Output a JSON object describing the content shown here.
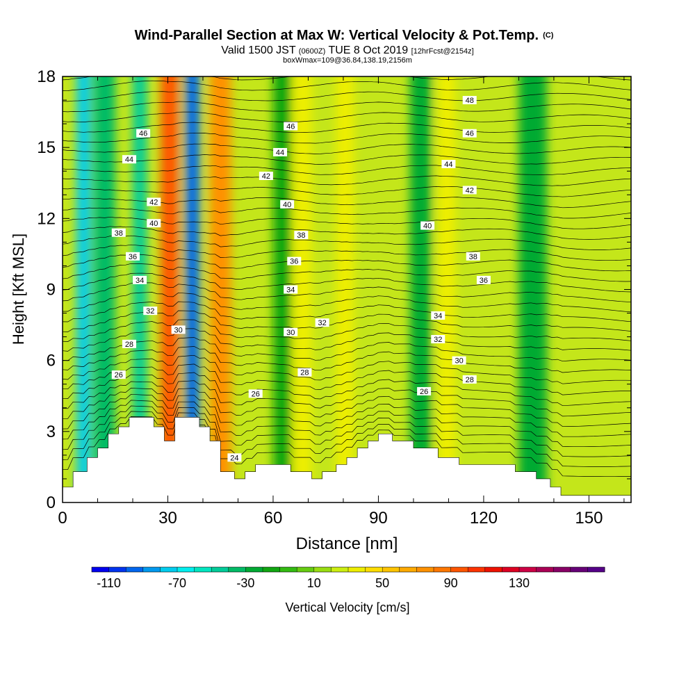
{
  "title": {
    "main": "Wind-Parallel Section at Max W: Vertical Velocity & Pot.Temp.",
    "main_tag": "(C)",
    "valid_prefix": "Valid 1500 JST",
    "valid_utc": "(0600Z)",
    "valid_date": "TUE 8 Oct 2019",
    "valid_fcst": "[12hrFcst@2154z]",
    "subtitle": "boxWmax=109@36.84,138.19,2156m"
  },
  "chart_data": {
    "type": "heatmap",
    "xlabel": "Distance [nm]",
    "ylabel": "Height [Kft MSL]",
    "xlim": [
      0,
      162
    ],
    "ylim": [
      0,
      18
    ],
    "xticks": [
      0,
      30,
      60,
      90,
      120,
      150
    ],
    "yticks": [
      0,
      3,
      6,
      9,
      12,
      15,
      18
    ],
    "terrain_kft": [
      [
        0,
        0.65
      ],
      [
        3,
        0.65
      ],
      [
        3,
        1.3
      ],
      [
        7,
        1.3
      ],
      [
        7,
        1.9
      ],
      [
        10,
        1.9
      ],
      [
        10,
        2.3
      ],
      [
        13,
        2.3
      ],
      [
        13,
        2.9
      ],
      [
        16,
        2.9
      ],
      [
        16,
        3.2
      ],
      [
        19,
        3.2
      ],
      [
        19,
        3.6
      ],
      [
        26,
        3.6
      ],
      [
        26,
        3.2
      ],
      [
        29,
        3.2
      ],
      [
        29,
        2.6
      ],
      [
        32,
        2.6
      ],
      [
        32,
        3.6
      ],
      [
        39,
        3.6
      ],
      [
        39,
        3.2
      ],
      [
        42,
        3.2
      ],
      [
        42,
        2.6
      ],
      [
        45,
        2.6
      ],
      [
        45,
        1.3
      ],
      [
        49,
        1.3
      ],
      [
        49,
        1.0
      ],
      [
        52,
        1.0
      ],
      [
        52,
        1.3
      ],
      [
        55,
        1.3
      ],
      [
        55,
        1.6
      ],
      [
        65,
        1.6
      ],
      [
        65,
        1.3
      ],
      [
        71,
        1.3
      ],
      [
        71,
        1.0
      ],
      [
        74,
        1.0
      ],
      [
        74,
        1.3
      ],
      [
        78,
        1.3
      ],
      [
        78,
        1.6
      ],
      [
        81,
        1.6
      ],
      [
        81,
        1.9
      ],
      [
        84,
        1.9
      ],
      [
        84,
        2.3
      ],
      [
        87,
        2.3
      ],
      [
        87,
        2.6
      ],
      [
        90,
        2.6
      ],
      [
        90,
        2.9
      ],
      [
        94,
        2.9
      ],
      [
        94,
        2.6
      ],
      [
        100,
        2.6
      ],
      [
        100,
        2.3
      ],
      [
        107,
        2.3
      ],
      [
        107,
        1.9
      ],
      [
        113,
        1.9
      ],
      [
        113,
        1.6
      ],
      [
        129,
        1.6
      ],
      [
        129,
        1.3
      ],
      [
        135,
        1.3
      ],
      [
        135,
        1.0
      ],
      [
        139,
        1.0
      ],
      [
        139,
        0.65
      ],
      [
        142,
        0.65
      ],
      [
        142,
        0.3
      ],
      [
        162,
        0.3
      ]
    ],
    "velocity_bands": [
      {
        "x": 4,
        "width": 4,
        "value": -75
      },
      {
        "x": 9,
        "width": 6,
        "value": -35
      },
      {
        "x": 20,
        "width": 4,
        "value": -45
      },
      {
        "x": 28,
        "width": 5,
        "value": 95
      },
      {
        "x": 35,
        "width": 4,
        "value": -100
      },
      {
        "x": 42,
        "width": 6,
        "value": 75
      },
      {
        "x": 60,
        "width": 5,
        "value": -20
      },
      {
        "x": 66,
        "width": 5,
        "value": 30
      },
      {
        "x": 78,
        "width": 5,
        "value": 35
      },
      {
        "x": 99,
        "width": 6,
        "value": -25
      },
      {
        "x": 107,
        "width": 5,
        "value": 35
      },
      {
        "x": 130,
        "width": 8,
        "value": -25
      }
    ],
    "theta_labels": [
      {
        "x": 23,
        "y": 15.6,
        "text": "46"
      },
      {
        "x": 19,
        "y": 14.5,
        "text": "44"
      },
      {
        "x": 26,
        "y": 12.7,
        "text": "42"
      },
      {
        "x": 26,
        "y": 11.8,
        "text": "40"
      },
      {
        "x": 16,
        "y": 11.4,
        "text": "38"
      },
      {
        "x": 20,
        "y": 10.4,
        "text": "36"
      },
      {
        "x": 22,
        "y": 9.4,
        "text": "34"
      },
      {
        "x": 25,
        "y": 8.1,
        "text": "32"
      },
      {
        "x": 33,
        "y": 7.3,
        "text": "30"
      },
      {
        "x": 19,
        "y": 6.7,
        "text": "28"
      },
      {
        "x": 16,
        "y": 5.4,
        "text": "26"
      },
      {
        "x": 65,
        "y": 15.9,
        "text": "46"
      },
      {
        "x": 62,
        "y": 14.8,
        "text": "44"
      },
      {
        "x": 58,
        "y": 13.8,
        "text": "42"
      },
      {
        "x": 64,
        "y": 12.6,
        "text": "40"
      },
      {
        "x": 68,
        "y": 11.3,
        "text": "38"
      },
      {
        "x": 66,
        "y": 10.2,
        "text": "36"
      },
      {
        "x": 65,
        "y": 9.0,
        "text": "34"
      },
      {
        "x": 74,
        "y": 7.6,
        "text": "32"
      },
      {
        "x": 65,
        "y": 7.2,
        "text": "30"
      },
      {
        "x": 69,
        "y": 5.5,
        "text": "28"
      },
      {
        "x": 55,
        "y": 4.6,
        "text": "26"
      },
      {
        "x": 49,
        "y": 1.9,
        "text": "24"
      },
      {
        "x": 116,
        "y": 17.0,
        "text": "48"
      },
      {
        "x": 116,
        "y": 15.6,
        "text": "46"
      },
      {
        "x": 110,
        "y": 14.3,
        "text": "44"
      },
      {
        "x": 116,
        "y": 13.2,
        "text": "42"
      },
      {
        "x": 104,
        "y": 11.7,
        "text": "40"
      },
      {
        "x": 117,
        "y": 10.4,
        "text": "38"
      },
      {
        "x": 120,
        "y": 9.4,
        "text": "36"
      },
      {
        "x": 107,
        "y": 7.9,
        "text": "34"
      },
      {
        "x": 107,
        "y": 6.9,
        "text": "32"
      },
      {
        "x": 113,
        "y": 6.0,
        "text": "30"
      },
      {
        "x": 116,
        "y": 5.2,
        "text": "28"
      },
      {
        "x": 103,
        "y": 4.7,
        "text": "26"
      }
    ],
    "colorbar": {
      "label": "Vertical Velocity [cm/s]",
      "min": -120,
      "step": 10,
      "colors": [
        "#0000ee",
        "#0033ee",
        "#0066ee",
        "#0099ee",
        "#00ccee",
        "#00eeee",
        "#00e6c0",
        "#00cc99",
        "#00bb66",
        "#00aa33",
        "#11a611",
        "#33bb11",
        "#66cc11",
        "#99dd11",
        "#ccee11",
        "#eeee00",
        "#ffdd00",
        "#ffc400",
        "#ffaa00",
        "#ff9100",
        "#ff7700",
        "#ff5500",
        "#ff3300",
        "#ee1100",
        "#dd0022",
        "#cc0044",
        "#aa0055",
        "#880066",
        "#660077",
        "#550088"
      ],
      "tick_labels": [
        "-110",
        "-70",
        "-30",
        "10",
        "50",
        "90",
        "130"
      ]
    }
  }
}
